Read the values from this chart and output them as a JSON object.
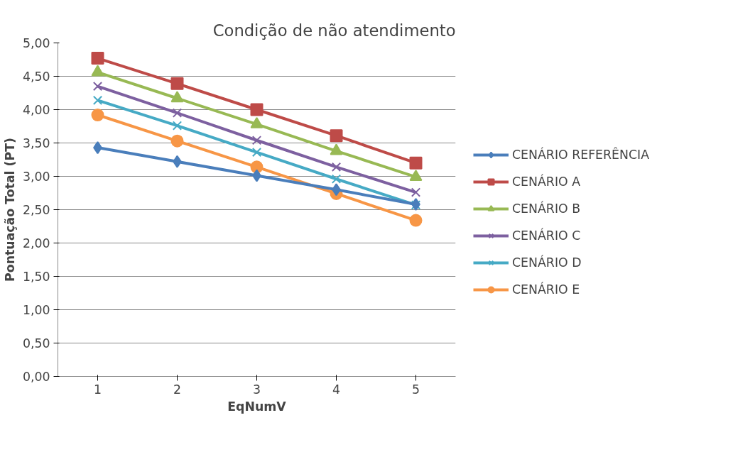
{
  "chart_data": {
    "type": "line",
    "title": "Condição de não atendimento",
    "xlabel": "EqNumV",
    "ylabel": "Pontuação Total (PT)",
    "categories": [
      "1",
      "2",
      "3",
      "4",
      "5"
    ],
    "ylim": [
      0,
      5
    ],
    "yticks": [
      {
        "value": 0,
        "label": "0,00"
      },
      {
        "value": 0.5,
        "label": "0,50"
      },
      {
        "value": 1,
        "label": "1,00"
      },
      {
        "value": 1.5,
        "label": "1,50"
      },
      {
        "value": 2,
        "label": "2,00"
      },
      {
        "value": 2.5,
        "label": "2,50"
      },
      {
        "value": 3,
        "label": "3,00"
      },
      {
        "value": 3.5,
        "label": "3,50"
      },
      {
        "value": 4,
        "label": "4,00"
      },
      {
        "value": 4.5,
        "label": "4,50"
      },
      {
        "value": 5,
        "label": "5,00"
      }
    ],
    "grid": "y",
    "legend": "right",
    "line_style": "solid",
    "series": [
      {
        "name": "CENÁRIO REFERÊNCIA",
        "color": "#4a7ebb",
        "marker": "diamond",
        "values": [
          3.43,
          3.22,
          3.01,
          2.8,
          2.58
        ]
      },
      {
        "name": "CENÁRIO A",
        "color": "#be4b48",
        "marker": "square",
        "values": [
          4.77,
          4.39,
          4.0,
          3.61,
          3.2
        ]
      },
      {
        "name": "CENÁRIO B",
        "color": "#98b954",
        "marker": "triangle",
        "values": [
          4.56,
          4.17,
          3.78,
          3.38,
          2.99
        ]
      },
      {
        "name": "CENÁRIO C",
        "color": "#7d60a0",
        "marker": "cross",
        "values": [
          4.35,
          3.95,
          3.54,
          3.14,
          2.76
        ]
      },
      {
        "name": "CENÁRIO D",
        "color": "#46aac5",
        "marker": "cross",
        "values": [
          4.14,
          3.76,
          3.36,
          2.96,
          2.57
        ]
      },
      {
        "name": "CENÁRIO E",
        "color": "#f79646",
        "marker": "circle",
        "values": [
          3.92,
          3.53,
          3.14,
          2.74,
          2.34
        ]
      }
    ]
  }
}
